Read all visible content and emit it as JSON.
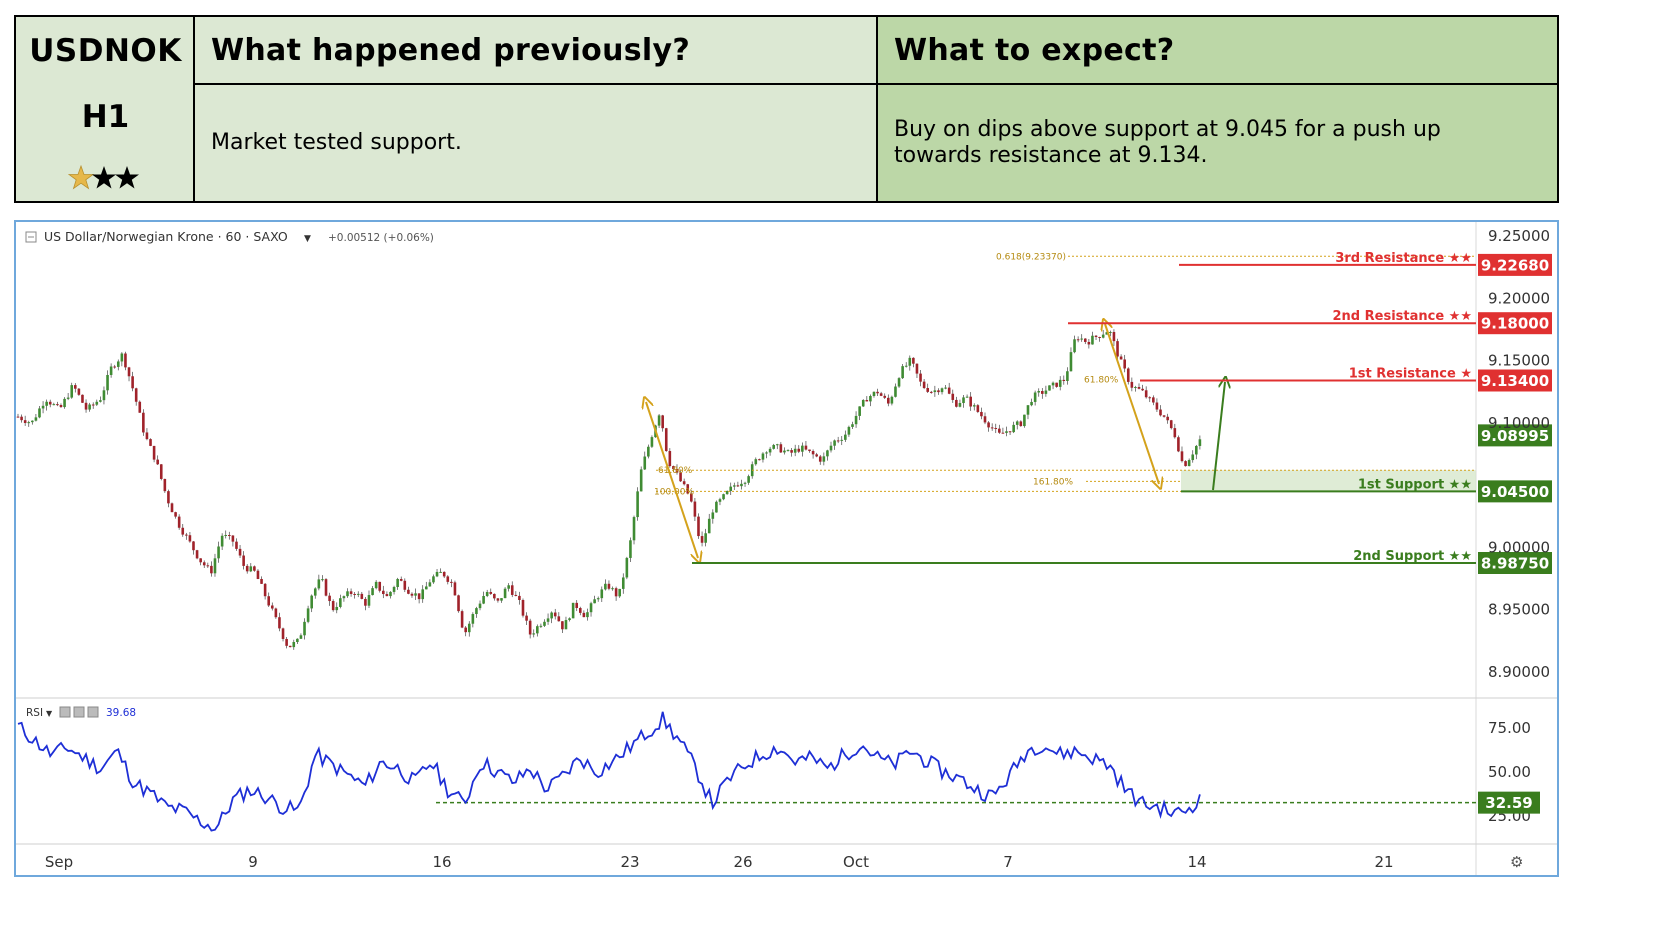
{
  "header": {
    "symbol": "USDNOK",
    "timeframe": "H1",
    "rating": 3,
    "prev_title": "What happened previously?",
    "prev_text": "Market tested support.",
    "expect_title": "What to expect?",
    "expect_text": "Buy on dips above support at 9.045 for a push up towards resistance at 9.134."
  },
  "chart_info": {
    "symbol_label": "US Dollar/Norwegian Krone · 60 · SAXO",
    "change": "+0.00512 (+0.06%)",
    "rsi_label": "RSI",
    "rsi_value": "39.68",
    "settings_icon": "gear-icon"
  },
  "colors": {
    "resistance": "#e03131",
    "support": "#3a7d1e",
    "fib": "#d4a21c",
    "rsi": "#1e2fd6",
    "up_candle": "#3f8b33",
    "down_candle": "#a0222a"
  },
  "chart_data": [
    {
      "type": "candlestick",
      "title": "US Dollar/Norwegian Krone",
      "ylim": [
        8.875,
        9.255
      ],
      "y_ticks": [
        "9.25000",
        "9.20000",
        "9.15000",
        "9.10000",
        "9.00000",
        "8.95000",
        "8.90000"
      ],
      "x_ticks": [
        "Sep",
        "9",
        "16",
        "23",
        "26",
        "Oct",
        "7",
        "14",
        "21"
      ],
      "last_price": "9.08995",
      "price_path": [
        [
          0,
          9.105
        ],
        [
          0.5,
          9.1
        ],
        [
          1,
          9.12
        ],
        [
          1.5,
          9.11
        ],
        [
          2,
          9.13
        ],
        [
          2.5,
          9.11
        ],
        [
          3,
          9.12
        ],
        [
          3.4,
          9.145
        ],
        [
          3.8,
          9.155
        ],
        [
          4.2,
          9.125
        ],
        [
          4.6,
          9.09
        ],
        [
          5,
          9.07
        ],
        [
          5.4,
          9.04
        ],
        [
          5.8,
          9.02
        ],
        [
          6.2,
          9.005
        ],
        [
          6.6,
          8.99
        ],
        [
          7,
          8.98
        ],
        [
          7.4,
          9.01
        ],
        [
          7.8,
          9.005
        ],
        [
          8.2,
          8.985
        ],
        [
          8.6,
          8.98
        ],
        [
          9,
          8.96
        ],
        [
          9.4,
          8.94
        ],
        [
          9.8,
          8.92
        ],
        [
          10.2,
          8.925
        ],
        [
          10.6,
          8.96
        ],
        [
          11,
          8.975
        ],
        [
          11.4,
          8.95
        ],
        [
          11.8,
          8.96
        ],
        [
          12.2,
          8.965
        ],
        [
          12.6,
          8.955
        ],
        [
          13,
          8.97
        ],
        [
          13.4,
          8.96
        ],
        [
          13.8,
          8.975
        ],
        [
          14.2,
          8.965
        ],
        [
          14.6,
          8.96
        ],
        [
          15,
          8.975
        ],
        [
          15.4,
          8.98
        ],
        [
          15.8,
          8.97
        ],
        [
          16.2,
          8.93
        ],
        [
          16.6,
          8.95
        ],
        [
          17,
          8.965
        ],
        [
          17.4,
          8.955
        ],
        [
          17.8,
          8.97
        ],
        [
          18.2,
          8.955
        ],
        [
          18.6,
          8.93
        ],
        [
          19,
          8.94
        ],
        [
          19.4,
          8.95
        ],
        [
          19.8,
          8.935
        ],
        [
          20.2,
          8.955
        ],
        [
          20.6,
          8.945
        ],
        [
          21,
          8.96
        ],
        [
          21.4,
          8.97
        ],
        [
          21.8,
          8.96
        ],
        [
          22.2,
          9.0
        ],
        [
          22.6,
          9.06
        ],
        [
          23,
          9.09
        ],
        [
          23.3,
          9.11
        ],
        [
          23.6,
          9.07
        ],
        [
          24,
          9.055
        ],
        [
          24.4,
          9.04
        ],
        [
          24.8,
          9.0
        ],
        [
          25.2,
          9.03
        ],
        [
          25.6,
          9.04
        ],
        [
          26,
          9.05
        ],
        [
          26.4,
          9.055
        ],
        [
          26.8,
          9.07
        ],
        [
          27.2,
          9.08
        ],
        [
          27.6,
          9.08
        ],
        [
          28,
          9.075
        ],
        [
          28.4,
          9.08
        ],
        [
          28.8,
          9.075
        ],
        [
          29.2,
          9.07
        ],
        [
          29.6,
          9.085
        ],
        [
          30,
          9.09
        ],
        [
          30.4,
          9.105
        ],
        [
          30.8,
          9.12
        ],
        [
          31.2,
          9.125
        ],
        [
          31.6,
          9.115
        ],
        [
          32,
          9.14
        ],
        [
          32.4,
          9.15
        ],
        [
          32.8,
          9.13
        ],
        [
          33.2,
          9.125
        ],
        [
          33.6,
          9.13
        ],
        [
          34,
          9.115
        ],
        [
          34.4,
          9.12
        ],
        [
          34.8,
          9.11
        ],
        [
          35.2,
          9.1
        ],
        [
          35.6,
          9.09
        ],
        [
          36,
          9.095
        ],
        [
          36.4,
          9.1
        ],
        [
          36.8,
          9.12
        ],
        [
          37.2,
          9.125
        ],
        [
          37.6,
          9.13
        ],
        [
          38,
          9.135
        ],
        [
          38.4,
          9.17
        ],
        [
          38.8,
          9.165
        ],
        [
          39.2,
          9.17
        ],
        [
          39.6,
          9.175
        ],
        [
          40,
          9.15
        ],
        [
          40.4,
          9.13
        ],
        [
          40.8,
          9.125
        ],
        [
          41.2,
          9.115
        ],
        [
          41.6,
          9.105
        ],
        [
          42,
          9.09
        ],
        [
          42.3,
          9.065
        ],
        [
          42.6,
          9.075
        ],
        [
          43,
          9.09
        ]
      ]
    },
    {
      "type": "line",
      "title": "RSI",
      "ylim": [
        10,
        88
      ],
      "y_ticks": [
        "75.00",
        "50.00",
        "25.00"
      ],
      "level": "32.59",
      "values": [
        [
          0,
          76
        ],
        [
          0.6,
          68
        ],
        [
          1.2,
          60
        ],
        [
          1.8,
          64
        ],
        [
          2.4,
          58
        ],
        [
          3,
          52
        ],
        [
          3.6,
          62
        ],
        [
          4.2,
          44
        ],
        [
          4.8,
          38
        ],
        [
          5.4,
          30
        ],
        [
          6,
          28
        ],
        [
          6.6,
          22
        ],
        [
          7.2,
          18
        ],
        [
          7.8,
          34
        ],
        [
          8.4,
          40
        ],
        [
          9,
          36
        ],
        [
          9.6,
          30
        ],
        [
          10.2,
          28
        ],
        [
          10.8,
          60
        ],
        [
          11.4,
          54
        ],
        [
          12,
          48
        ],
        [
          12.6,
          42
        ],
        [
          13.2,
          56
        ],
        [
          13.8,
          52
        ],
        [
          14.4,
          44
        ],
        [
          15,
          56
        ],
        [
          15.6,
          40
        ],
        [
          16.2,
          32
        ],
        [
          16.8,
          56
        ],
        [
          17.4,
          50
        ],
        [
          18,
          44
        ],
        [
          18.6,
          52
        ],
        [
          19.2,
          40
        ],
        [
          19.8,
          48
        ],
        [
          20.4,
          58
        ],
        [
          21,
          50
        ],
        [
          21.6,
          56
        ],
        [
          22.2,
          64
        ],
        [
          22.8,
          72
        ],
        [
          23.4,
          80
        ],
        [
          24,
          68
        ],
        [
          24.6,
          52
        ],
        [
          25.2,
          32
        ],
        [
          25.8,
          46
        ],
        [
          26.4,
          54
        ],
        [
          27,
          60
        ],
        [
          27.6,
          64
        ],
        [
          28.2,
          56
        ],
        [
          28.8,
          58
        ],
        [
          29.4,
          52
        ],
        [
          30,
          60
        ],
        [
          30.6,
          66
        ],
        [
          31.2,
          58
        ],
        [
          31.8,
          54
        ],
        [
          32.4,
          62
        ],
        [
          33,
          56
        ],
        [
          33.6,
          50
        ],
        [
          34.2,
          46
        ],
        [
          34.8,
          40
        ],
        [
          35.4,
          36
        ],
        [
          36,
          48
        ],
        [
          36.6,
          62
        ],
        [
          37.2,
          66
        ],
        [
          37.8,
          60
        ],
        [
          38.4,
          62
        ],
        [
          39,
          58
        ],
        [
          39.6,
          54
        ],
        [
          40.2,
          40
        ],
        [
          40.8,
          32
        ],
        [
          41.4,
          30
        ],
        [
          42,
          26
        ],
        [
          42.6,
          30
        ],
        [
          43,
          39.68
        ]
      ]
    }
  ],
  "levels": [
    {
      "label": "3rd Resistance ★★",
      "price": "9.22680",
      "kind": "resistance"
    },
    {
      "label": "2nd Resistance ★★",
      "price": "9.18000",
      "kind": "resistance"
    },
    {
      "label": "1st Resistance ★",
      "price": "9.13400",
      "kind": "resistance"
    },
    {
      "label": "1st Support ★★",
      "price": "9.04500",
      "kind": "support"
    },
    {
      "label": "2nd Support ★★",
      "price": "8.98750",
      "kind": "support"
    }
  ],
  "fib_labels": [
    {
      "text": "0.618(9.23370)"
    },
    {
      "text": "61.80%"
    },
    {
      "text": "61.80%"
    },
    {
      "text": "100.00%"
    },
    {
      "text": "161.80%"
    }
  ]
}
